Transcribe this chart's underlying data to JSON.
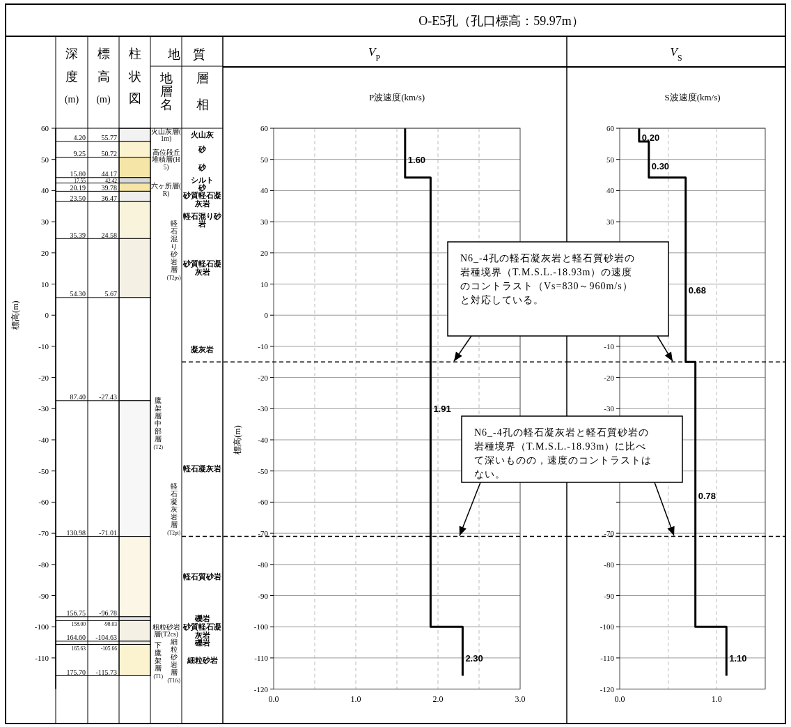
{
  "chart_data": [
    {
      "type": "bar",
      "ylabel": "標高(m)",
      "ylim": [
        -120,
        60
      ],
      "yticks": [
        -110,
        -100,
        -90,
        -80,
        -70,
        -60,
        -50,
        -40,
        -30,
        -20,
        -10,
        0,
        10,
        20,
        30,
        40,
        50,
        60
      ],
      "categories": [
        "深度(m)",
        "標高(m)",
        "柱状図",
        "地層名",
        "層相"
      ],
      "series": [
        {
          "color": "#f2f2f2",
          "values": [
            null,
            null,
            4.2,
            null,
            null
          ],
          "base": [
            null,
            null,
            55.77,
            null,
            null
          ]
        },
        {
          "color": "#fbf3d0",
          "values": [
            null,
            null,
            5.05,
            null,
            null
          ],
          "base": [
            null,
            null,
            50.72,
            null,
            null
          ]
        },
        {
          "color": "#f5e6a8",
          "values": [
            null,
            null,
            6.55,
            null,
            null
          ],
          "base": [
            null,
            null,
            44.17,
            null,
            null
          ]
        },
        {
          "color": "#d9d9d9",
          "values": [
            null,
            null,
            1.75,
            null,
            null
          ],
          "base": [
            null,
            null,
            42.42,
            null,
            null
          ]
        },
        {
          "color": "#f5e6a8",
          "values": [
            null,
            null,
            2.64,
            null,
            null
          ],
          "base": [
            null,
            null,
            39.78,
            null,
            null
          ]
        },
        {
          "color": "#eeeeee",
          "values": [
            null,
            null,
            3.31,
            null,
            null
          ],
          "base": [
            null,
            null,
            36.47,
            null,
            null
          ]
        },
        {
          "color": "#faf3dc",
          "values": [
            null,
            null,
            11.89,
            null,
            null
          ],
          "base": [
            null,
            null,
            24.58,
            null,
            null
          ]
        },
        {
          "color": "#f4f0e4",
          "values": [
            null,
            null,
            18.91,
            null,
            null
          ],
          "base": [
            null,
            null,
            5.67,
            null,
            null
          ]
        },
        {
          "color": "#ffffff",
          "values": [
            null,
            null,
            33.1,
            null,
            null
          ],
          "base": [
            null,
            null,
            -27.43,
            null,
            null
          ]
        },
        {
          "color": "#f7f7f7",
          "values": [
            null,
            null,
            43.58,
            null,
            null
          ],
          "base": [
            null,
            null,
            -71.01,
            null,
            null
          ]
        },
        {
          "color": "#fbf6e6",
          "values": [
            null,
            null,
            25.77,
            null,
            null
          ],
          "base": [
            null,
            null,
            -96.78,
            null,
            null
          ]
        },
        {
          "color": "#e6e6e6",
          "values": [
            null,
            null,
            1.25,
            null,
            null
          ],
          "base": [
            null,
            null,
            -98.03,
            null,
            null
          ]
        },
        {
          "color": "#f4f0e4",
          "values": [
            null,
            null,
            6.6,
            null,
            null
          ],
          "base": [
            null,
            null,
            -104.63,
            null,
            null
          ]
        },
        {
          "color": "#e6e6e6",
          "values": [
            null,
            null,
            1.03,
            null,
            null
          ],
          "base": [
            null,
            null,
            -105.66,
            null,
            null
          ]
        },
        {
          "color": "#fbf3d0",
          "values": [
            null,
            null,
            10.07,
            null,
            null
          ],
          "base": [
            null,
            null,
            -115.73,
            null,
            null
          ]
        }
      ],
      "annotations": [
        "地　質",
        "4.20",
        "9.25",
        "15.80",
        "17.55",
        "20.19",
        "23.50",
        "35.39",
        "54.30",
        "87.40",
        "130.98",
        "156.75",
        "158.00",
        "164.60",
        "165.63",
        "175.70",
        "55.77",
        "50.72",
        "44.17",
        "42.42",
        "39.78",
        "36.47",
        "24.58",
        "5.67",
        "-27.43",
        "-71.01",
        "-96.78",
        "-98.03",
        "-104.63",
        "-105.66",
        "-115.73",
        "火山灰層(1m)",
        "高位段丘堆積層(H5)",
        "六ヶ所層(R)",
        "軽石混り砂岩層(T2ps)",
        "鷹架層中部層(T2)",
        "軽石凝灰岩層(T2pt)",
        "粗粒砂岩層(T2cs)",
        "下鷹架層(T1)",
        "細粒砂岩層(T1fs)",
        "火山灰",
        "砂",
        "砂",
        "シルト",
        "砂",
        "砂質軽石凝灰岩",
        "軽石混り砂岩",
        "砂質軽石凝灰岩",
        "凝灰岩",
        "軽石凝灰岩",
        "軽石質砂岩",
        "礫岩",
        "砂質軽石凝灰岩",
        "礫岩",
        "細粒砂岩"
      ]
    },
    {
      "type": "line",
      "title": "O-E5孔（孔口標高：59.97m）",
      "subtitle": "V$_{P}$",
      "xlabel": "P波速度(km/s)",
      "ylabel": "標高(m)",
      "xlim": [
        0,
        3
      ],
      "xticks": [
        {
          "value": 0,
          "label": "0.0"
        },
        {
          "value": 0.5,
          "label": null
        },
        {
          "value": 1,
          "label": "1.0"
        },
        {
          "value": 1.5,
          "label": null
        },
        {
          "value": 2,
          "label": "2.0"
        },
        {
          "value": 2.5,
          "label": null
        },
        {
          "value": 3,
          "label": "3.0"
        }
      ],
      "ylim": [
        -120,
        60
      ],
      "yticks": [
        -120,
        -110,
        -100,
        -90,
        -80,
        -70,
        -60,
        -50,
        -40,
        -30,
        -20,
        -10,
        0,
        10,
        20,
        30,
        40,
        50,
        60
      ],
      "grid": true,
      "series": [
        {
          "color": "#000000",
          "x": [
            1.6,
            1.6,
            1.91,
            1.91,
            2.3,
            2.3
          ],
          "values": [
            59.97,
            44.17,
            44.17,
            -100,
            -100,
            -115.73
          ]
        }
      ],
      "ref_lines": [
        {
          "axis": "y",
          "value": -15,
          "line_style": "dashed",
          "color": "#000000"
        },
        {
          "axis": "y",
          "value": -71.01,
          "line_style": "dashed",
          "color": "#000000"
        }
      ],
      "annotations": [
        {
          "text": "1.60",
          "x": 1.6,
          "y": 50
        },
        {
          "text": "1.91",
          "x": 1.91,
          "y": -30
        },
        {
          "text": "2.30",
          "x": 2.3,
          "y": -110
        },
        "N6_-4孔の軽石凝灰岩と軽石質砂岩の岩種境界（T.M.S.L.-18.93m）の速度のコントラスト（Vs=830～960m/s）と対応している。"
      ]
    },
    {
      "type": "line",
      "title": "V$_{S}$",
      "xlabel": "S波速度(km/s)",
      "xlim": [
        0,
        1.5
      ],
      "xticks": [
        {
          "value": 0,
          "label": "0.0"
        },
        {
          "value": 0.5,
          "label": null
        },
        {
          "value": 1,
          "label": "1.0"
        }
      ],
      "ylim": [
        -120,
        60
      ],
      "yticks": [
        -120,
        -110,
        -100,
        -90,
        -80,
        -70,
        {
          "value": -60,
          "label": null
        },
        {
          "value": -50,
          "label": null
        },
        {
          "value": -40,
          "label": null
        },
        -30,
        -20,
        -10,
        {
          "value": 0,
          "label": null
        },
        {
          "value": 10,
          "label": null
        },
        {
          "value": 20,
          "label": null
        },
        30,
        40,
        50,
        60
      ],
      "grid": true,
      "series": [
        {
          "color": "#000000",
          "x": [
            0.2,
            0.2,
            0.3,
            0.3,
            0.68,
            0.68,
            0.78,
            0.78,
            1.1,
            1.1
          ],
          "values": [
            59.97,
            55.77,
            55.77,
            44.17,
            44.17,
            -15,
            -15,
            -100,
            -100,
            -115.73
          ]
        }
      ],
      "ref_lines": [
        {
          "axis": "y",
          "value": -15,
          "line_style": "dashed",
          "color": "#000000"
        },
        {
          "axis": "y",
          "value": -71.01,
          "line_style": "dashed",
          "color": "#000000"
        }
      ],
      "annotations": [
        {
          "text": "0.20",
          "x": 0.2,
          "y": 57
        },
        {
          "text": "0.30",
          "x": 0.3,
          "y": 48
        },
        {
          "text": "0.68",
          "x": 0.68,
          "y": 8
        },
        {
          "text": "0.78",
          "x": 0.78,
          "y": -58
        },
        {
          "text": "1.10",
          "x": 1.1,
          "y": -110
        },
        "N6_-4孔の軽石凝灰岩と軽石質砂岩の岩種境界（T.M.S.L.-18.93m）に比べて深いものの，速度のコントラストはない。"
      ]
    }
  ]
}
